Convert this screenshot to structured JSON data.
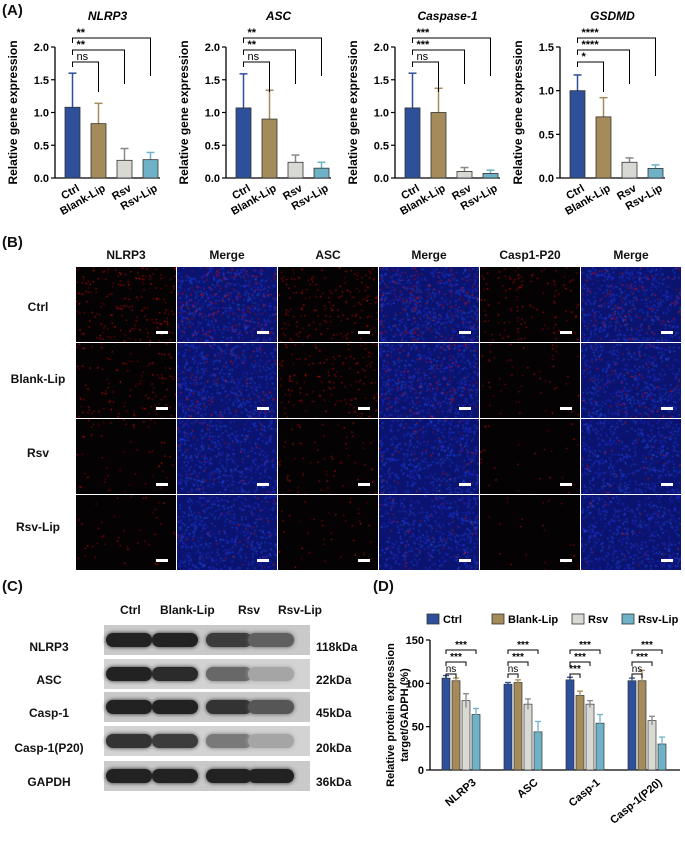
{
  "panels": {
    "a": "(A)",
    "b": "(B)",
    "c": "(C)",
    "d": "(D)"
  },
  "colors": {
    "ctrl": "#2e4f9a",
    "blank_lip": "#a58a5a",
    "rsv": "#d9d9d4",
    "rsv_lip": "#6fb2c7"
  },
  "panel_a": {
    "ylabel": "Relative gene expression",
    "groups": [
      "Ctrl",
      "Blank-Lip",
      "Rsv",
      "Rsv-Lip"
    ],
    "sig_labels": {
      "nlrp3": [
        "ns",
        "**",
        "**"
      ],
      "asc": [
        "ns",
        "**",
        "**"
      ],
      "caspase1": [
        "ns",
        "***",
        "***"
      ],
      "gsdmd": [
        "*",
        "****",
        "****"
      ]
    }
  },
  "chart_data": [
    {
      "type": "bar",
      "title": "NLRP3",
      "ylabel": "Relative gene expression",
      "categories": [
        "Ctrl",
        "Blank-Lip",
        "Rsv",
        "Rsv-Lip"
      ],
      "values": [
        1.08,
        0.83,
        0.27,
        0.28
      ],
      "errors": [
        0.52,
        0.31,
        0.18,
        0.11
      ],
      "ylim": [
        0,
        2.0
      ],
      "yticks": [
        "0.0",
        "0.5",
        "1.0",
        "1.5",
        "2.0"
      ]
    },
    {
      "type": "bar",
      "title": "ASC",
      "ylabel": "Relative gene expression",
      "categories": [
        "Ctrl",
        "Blank-Lip",
        "Rsv",
        "Rsv-Lip"
      ],
      "values": [
        1.07,
        0.9,
        0.24,
        0.15
      ],
      "errors": [
        0.52,
        0.44,
        0.11,
        0.09
      ],
      "ylim": [
        0,
        2.0
      ],
      "yticks": [
        "0.0",
        "0.5",
        "1.0",
        "1.5",
        "2.0"
      ]
    },
    {
      "type": "bar",
      "title": "Caspase-1",
      "ylabel": "Relative gene expression",
      "categories": [
        "Ctrl",
        "Blank-Lip",
        "Rsv",
        "Rsv-Lip"
      ],
      "values": [
        1.07,
        1.0,
        0.1,
        0.07
      ],
      "errors": [
        0.53,
        0.37,
        0.06,
        0.05
      ],
      "ylim": [
        0,
        2.0
      ],
      "yticks": [
        "0.0",
        "0.5",
        "1.0",
        "1.5",
        "2.0"
      ]
    },
    {
      "type": "bar",
      "title": "GSDMD",
      "ylabel": "Relative gene expression",
      "categories": [
        "Ctrl",
        "Blank-Lip",
        "Rsv",
        "Rsv-Lip"
      ],
      "values": [
        1.0,
        0.7,
        0.18,
        0.11
      ],
      "errors": [
        0.18,
        0.22,
        0.05,
        0.04
      ],
      "ylim": [
        0,
        1.5
      ],
      "yticks": [
        "0.0",
        "0.5",
        "1.0",
        "1.5"
      ]
    },
    {
      "type": "bar",
      "ylabel": "Relative protein expression target/GADPH (%)",
      "categories": [
        "NLRP3",
        "ASC",
        "Casp-1",
        "Casp-1(P20)"
      ],
      "ylim": [
        0,
        150
      ],
      "yticks": [
        "0",
        "50",
        "100",
        "150"
      ],
      "series": [
        {
          "name": "Ctrl",
          "values": [
            106,
            99,
            104,
            103
          ],
          "errors": [
            3,
            2,
            3,
            3
          ]
        },
        {
          "name": "Blank-Lip",
          "values": [
            103,
            101,
            86,
            103
          ],
          "errors": [
            3,
            3,
            5,
            12
          ]
        },
        {
          "name": "Rsv",
          "values": [
            80,
            76,
            76,
            57
          ],
          "errors": [
            8,
            6,
            4,
            5
          ]
        },
        {
          "name": "Rsv-Lip",
          "values": [
            64,
            44,
            54,
            30
          ],
          "errors": [
            7,
            12,
            10,
            8
          ]
        }
      ],
      "sig_labels": [
        [
          "***",
          "***",
          "ns"
        ],
        [
          "***",
          "***",
          "ns"
        ],
        [
          "***",
          "***",
          "***"
        ],
        [
          "***",
          "***",
          "ns"
        ]
      ]
    }
  ],
  "panel_b": {
    "columns": [
      "NLRP3",
      "Merge",
      "ASC",
      "Merge",
      "Casp1-P20",
      "Merge"
    ],
    "rows": [
      "Ctrl",
      "Blank-Lip",
      "Rsv",
      "Rsv-Lip"
    ]
  },
  "panel_c": {
    "lanes": [
      "Ctrl",
      "Blank-Lip",
      "Rsv",
      "Rsv-Lip"
    ],
    "proteins": [
      "NLRP3",
      "ASC",
      "Casp-1",
      "Casp-1(P20)",
      "GAPDH"
    ],
    "sizes": [
      "118kDa",
      "22kDa",
      "45kDa",
      "20kDa",
      "36kDa"
    ],
    "band_intensity": [
      [
        0.95,
        0.95,
        0.8,
        0.6
      ],
      [
        0.95,
        0.9,
        0.55,
        0.2
      ],
      [
        0.95,
        0.95,
        0.85,
        0.65
      ],
      [
        0.85,
        0.8,
        0.45,
        0.2
      ],
      [
        0.95,
        0.95,
        0.95,
        0.95
      ]
    ]
  }
}
